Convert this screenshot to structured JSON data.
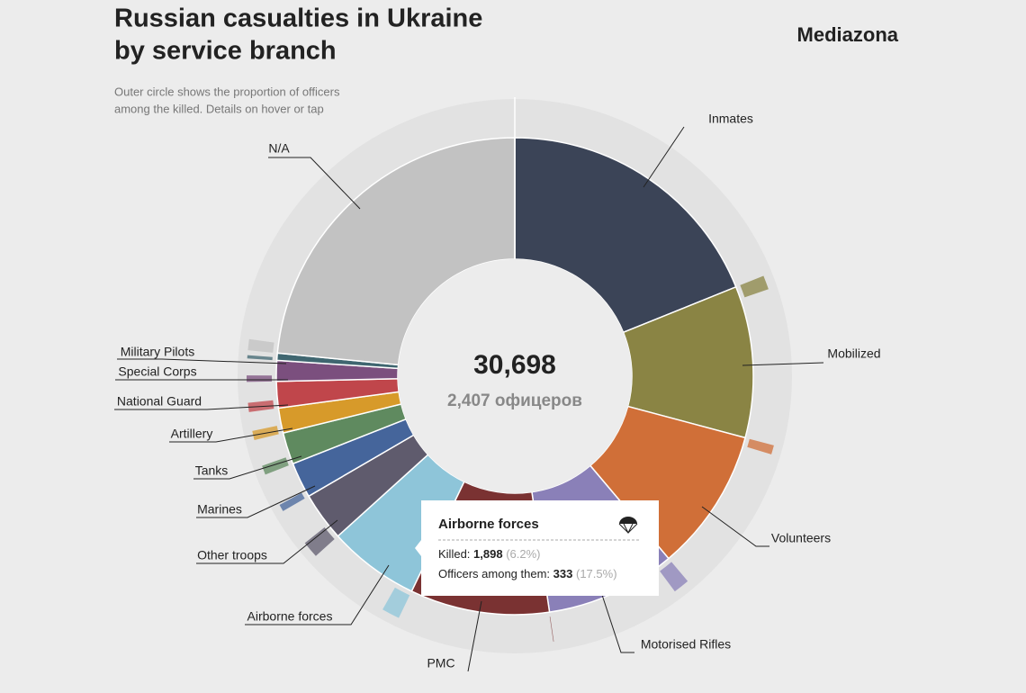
{
  "chart_data": {
    "type": "donut",
    "title": [
      "Russian casualties in Ukraine",
      "by service branch"
    ],
    "subtitle": [
      "Outer circle shows the proportion of officers",
      "among the killed. Details on hover or tap"
    ],
    "brand": "Mediazona",
    "center_value": "30,698",
    "center_label": "2,407 офицеров",
    "categories": [
      "Inmates",
      "Mobilized",
      "Volunteers",
      "Motorised Rifles",
      "PMC",
      "Airborne forces",
      "Other troops",
      "Marines",
      "Tanks",
      "Artillery",
      "National Guard",
      "Special Corps",
      "Military Pilots",
      "N/A"
    ],
    "values": [
      5800,
      3150,
      2975,
      2710,
      2900,
      1898,
      1015,
      740,
      660,
      520,
      550,
      430,
      150,
      7200
    ],
    "officers": [
      0,
      260,
      170,
      300,
      10,
      333,
      310,
      130,
      170,
      170,
      170,
      120,
      60,
      204
    ],
    "colors": [
      "#3b4457",
      "#8a8444",
      "#d06f38",
      "#8a80b8",
      "#7a3232",
      "#8ec5d9",
      "#5f5b6d",
      "#45659b",
      "#5f8a5f",
      "#d79a2a",
      "#c0464b",
      "#7b4f7e",
      "#3f6670",
      "#c2c2c2"
    ],
    "tooltip": {
      "title": "Airborne forces",
      "killed_label": "Killed:",
      "killed": "1,898",
      "killed_share": "(6.2%)",
      "officers_label": "Officers among them:",
      "officers": "333",
      "officers_share": "(17.5%)"
    }
  }
}
